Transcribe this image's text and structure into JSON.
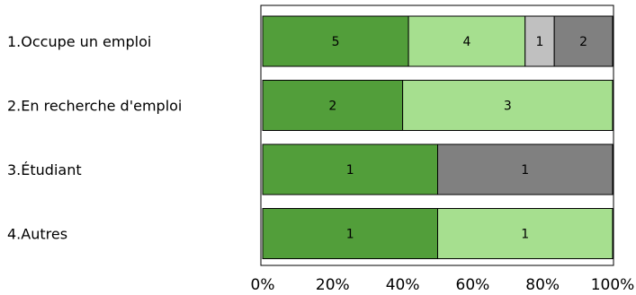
{
  "chart_data": {
    "type": "bar",
    "orientation": "horizontal",
    "stacked": "percent",
    "categories": [
      "1.Occupe un emploi",
      "2.En recherche d'emploi",
      "3.Étudiant",
      "4.Autres"
    ],
    "series": [
      {
        "values": [
          5,
          2,
          1,
          1
        ],
        "color": "#529e3a"
      },
      {
        "values": [
          4,
          3,
          0,
          1
        ],
        "color": "#a6df8f"
      },
      {
        "values": [
          1,
          0,
          0,
          0
        ],
        "color": "#c0c0c0"
      },
      {
        "values": [
          2,
          0,
          1,
          0
        ],
        "color": "#808080"
      }
    ],
    "xticks": [
      "0%",
      "20%",
      "40%",
      "60%",
      "80%",
      "100%"
    ],
    "xlim": [
      0,
      100
    ],
    "grid": false,
    "legend": "none"
  }
}
